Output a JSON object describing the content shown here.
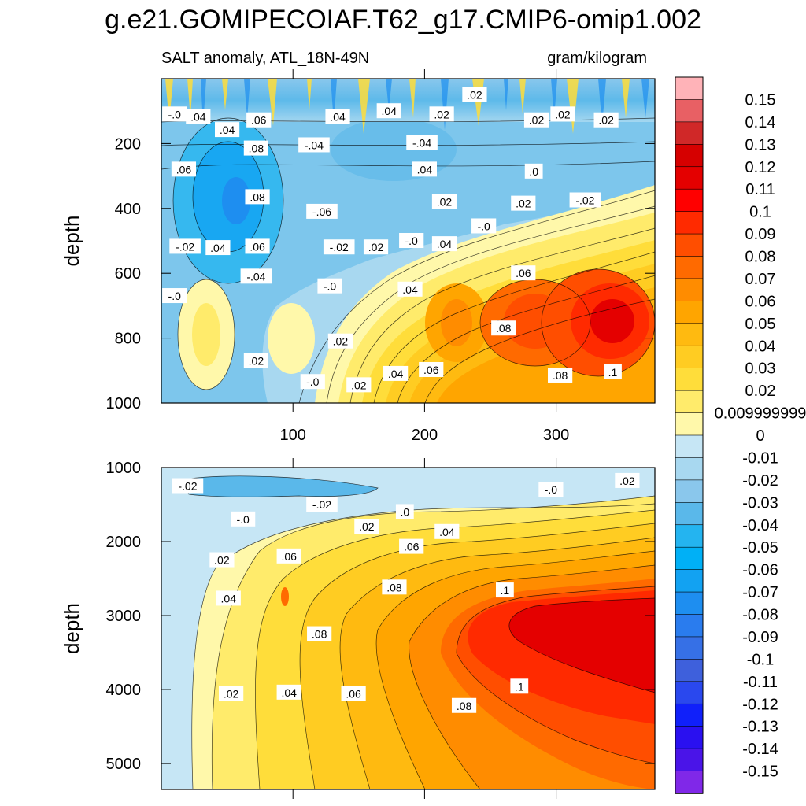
{
  "chart_data": {
    "title": "g.e21.GOMIPECOIAF.T62_g17.CMIP6-omip1.002",
    "subtitle_left": "SALT anomaly, ATL_18N-49N",
    "subtitle_right": "gram/kilogram",
    "type": "heatmap",
    "panels": [
      {
        "name": "upper",
        "ylabel": "depth",
        "ylim": [
          1000,
          0
        ],
        "yticks": [
          200,
          400,
          600,
          800,
          1000
        ],
        "xlim": [
          0,
          375
        ],
        "xticks": [
          100,
          200,
          300
        ],
        "xticklabels": [
          "100",
          "200",
          "300"
        ],
        "contour_labels": [
          {
            "text": "-.0",
            "x": 10,
            "y": 110
          },
          {
            "text": ".04",
            "x": 28,
            "y": 118
          },
          {
            "text": ".04",
            "x": 50,
            "y": 158
          },
          {
            "text": ".06",
            "x": 74,
            "y": 128
          },
          {
            "text": ".04",
            "x": 134,
            "y": 118
          },
          {
            "text": ".04",
            "x": 173,
            "y": 100
          },
          {
            "text": ".02",
            "x": 213,
            "y": 110
          },
          {
            "text": ".02",
            "x": 238,
            "y": 50
          },
          {
            "text": ".02",
            "x": 285,
            "y": 128
          },
          {
            "text": ".02",
            "x": 305,
            "y": 110
          },
          {
            "text": ".02",
            "x": 338,
            "y": 128
          },
          {
            "text": "-.04",
            "x": 116,
            "y": 205
          },
          {
            "text": "-.04",
            "x": 198,
            "y": 198
          },
          {
            "text": ".08",
            "x": 72,
            "y": 215
          },
          {
            "text": ".06",
            "x": 17,
            "y": 280
          },
          {
            "text": ".04",
            "x": 200,
            "y": 280
          },
          {
            "text": ".0",
            "x": 283,
            "y": 286
          },
          {
            "text": ".08",
            "x": 73,
            "y": 365
          },
          {
            "text": "-.06",
            "x": 122,
            "y": 410
          },
          {
            "text": ".02",
            "x": 215,
            "y": 380
          },
          {
            "text": "-.02",
            "x": 322,
            "y": 375
          },
          {
            "text": ".02",
            "x": 275,
            "y": 385
          },
          {
            "text": "-.0",
            "x": 245,
            "y": 455
          },
          {
            "text": "-.02",
            "x": 18,
            "y": 518
          },
          {
            "text": ".04",
            "x": 43,
            "y": 522
          },
          {
            "text": ".06",
            "x": 73,
            "y": 518
          },
          {
            "text": "-.02",
            "x": 135,
            "y": 520
          },
          {
            "text": ".02",
            "x": 163,
            "y": 520
          },
          {
            "text": "-.0",
            "x": 190,
            "y": 500
          },
          {
            "text": ".04",
            "x": 215,
            "y": 510
          },
          {
            "text": "-.04",
            "x": 72,
            "y": 610
          },
          {
            "text": "-.0",
            "x": 128,
            "y": 640
          },
          {
            "text": ".04",
            "x": 189,
            "y": 650
          },
          {
            "text": ".06",
            "x": 275,
            "y": 600
          },
          {
            "text": "-.0",
            "x": 10,
            "y": 670
          },
          {
            "text": ".08",
            "x": 260,
            "y": 770
          },
          {
            "text": ".02",
            "x": 136,
            "y": 810
          },
          {
            "text": ".02",
            "x": 72,
            "y": 870
          },
          {
            "text": ".04",
            "x": 178,
            "y": 910
          },
          {
            "text": ".06",
            "x": 205,
            "y": 898
          },
          {
            "text": "-.0",
            "x": 115,
            "y": 935
          },
          {
            "text": ".02",
            "x": 150,
            "y": 945
          },
          {
            "text": ".08",
            "x": 303,
            "y": 915
          },
          {
            "text": ".1",
            "x": 343,
            "y": 905
          }
        ]
      },
      {
        "name": "lower",
        "ylabel": "depth",
        "ylim": [
          5350,
          1000
        ],
        "yticks": [
          1000,
          2000,
          3000,
          4000,
          5000
        ],
        "xlim": [
          0,
          375
        ],
        "xticks": [
          100,
          200,
          300
        ],
        "contour_labels": [
          {
            "text": "-.02",
            "x": 20,
            "y": 1250
          },
          {
            "text": "-.02",
            "x": 122,
            "y": 1500
          },
          {
            "text": "-.0",
            "x": 62,
            "y": 1700
          },
          {
            "text": ".02",
            "x": 156,
            "y": 1800
          },
          {
            "text": ".0",
            "x": 185,
            "y": 1600
          },
          {
            "text": ".04",
            "x": 217,
            "y": 1870
          },
          {
            "text": ".06",
            "x": 190,
            "y": 2070
          },
          {
            "text": "-.0",
            "x": 296,
            "y": 1300
          },
          {
            "text": ".02",
            "x": 354,
            "y": 1180
          },
          {
            "text": ".02",
            "x": 46,
            "y": 2250
          },
          {
            "text": ".06",
            "x": 97,
            "y": 2200
          },
          {
            "text": ".08",
            "x": 177,
            "y": 2620
          },
          {
            "text": ".1",
            "x": 261,
            "y": 2660
          },
          {
            "text": ".04",
            "x": 51,
            "y": 2770
          },
          {
            "text": ".08",
            "x": 120,
            "y": 3250
          },
          {
            "text": ".02",
            "x": 53,
            "y": 4060
          },
          {
            "text": ".04",
            "x": 97,
            "y": 4040
          },
          {
            "text": ".06",
            "x": 146,
            "y": 4060
          },
          {
            "text": ".08",
            "x": 230,
            "y": 4220
          },
          {
            "text": ".1",
            "x": 272,
            "y": 3960
          }
        ]
      }
    ],
    "colorbar": {
      "tick_labels": [
        "0.15",
        "0.14",
        "0.13",
        "0.12",
        "0.11",
        "0.1",
        "0.09",
        "0.08",
        "0.07",
        "0.06",
        "0.05",
        "0.04",
        "0.03",
        "0.02",
        "0.009999999",
        "0",
        "-0.01",
        "-0.02",
        "-0.03",
        "-0.04",
        "-0.05",
        "-0.06",
        "-0.07",
        "-0.08",
        "-0.09",
        "-0.1",
        "-0.11",
        "-0.12",
        "-0.13",
        "-0.14",
        "-0.15"
      ],
      "colors": [
        "#ffb3b8",
        "#e86064",
        "#d02828",
        "#d60000",
        "#e40000",
        "#ff0000",
        "#ff2a00",
        "#ff4e00",
        "#ff6a00",
        "#ff8c00",
        "#ffa500",
        "#ffba10",
        "#ffcc22",
        "#ffdd3a",
        "#ffeb6b",
        "#fff8aa",
        "#c6e6f5",
        "#a8d8f0",
        "#8ac7ec",
        "#5ab8ea",
        "#24b4f0",
        "#00b0f6",
        "#12a2f2",
        "#1e8ef0",
        "#2a7cee",
        "#3670e6",
        "#3e60dc",
        "#2a48ee",
        "#1020fa",
        "#2a10f0",
        "#4a14e8",
        "#8028e8"
      ]
    }
  }
}
